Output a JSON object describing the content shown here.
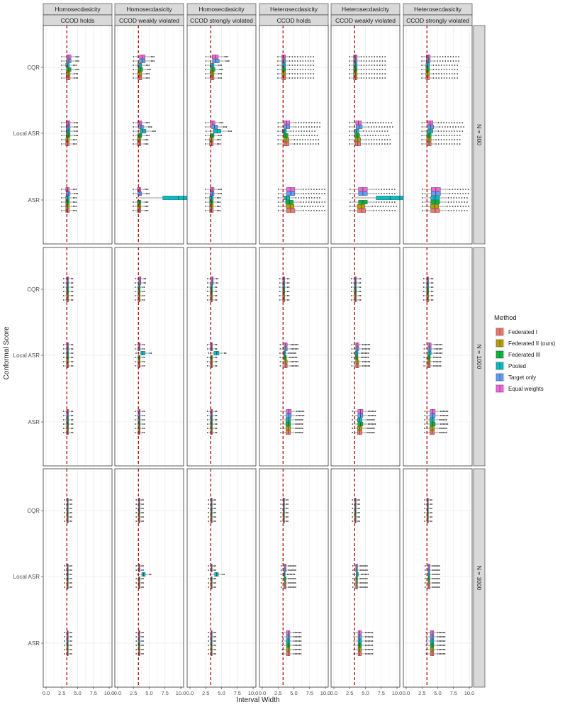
{
  "chart_data": {
    "type": "boxplot",
    "xlabel": "Interval Width",
    "ylabel": "Conformal Score",
    "xlim": [
      0,
      10
    ],
    "x_ticks": [
      "0.0",
      "2.5",
      "5.0",
      "7.5",
      "10.0"
    ],
    "reference_line": 3.29,
    "columns": [
      {
        "top": "Homosecdasicity",
        "bottom": "CCOD holds"
      },
      {
        "top": "Homosecdasicity",
        "bottom": "CCOD weakly violated"
      },
      {
        "top": "Homosecdasicity",
        "bottom": "CCOD strongly violated"
      },
      {
        "top": "Heterosecdasicity",
        "bottom": "CCOD holds"
      },
      {
        "top": "Heterosecdasicity",
        "bottom": "CCOD weakly violated"
      },
      {
        "top": "Heterosecdasicity",
        "bottom": "CCOD strongly violated"
      }
    ],
    "rows": [
      "N = 300",
      "N = 1000",
      "N = 3000"
    ],
    "categories": [
      "CQR",
      "Local ASR",
      "ASR"
    ],
    "legend": {
      "title": "Method",
      "entries": [
        {
          "name": "Federated I",
          "color": "#F8766D"
        },
        {
          "name": "Federated II (ours)",
          "color": "#B79F00"
        },
        {
          "name": "Federated III",
          "color": "#00BA38"
        },
        {
          "name": "Pooled",
          "color": "#00BFC4"
        },
        {
          "name": "Target only",
          "color": "#619CFF"
        },
        {
          "name": "Equal weights",
          "color": "#F564E3"
        }
      ]
    },
    "series_order_bottom_to_top": [
      "Federated I",
      "Federated II (ours)",
      "Federated III",
      "Pooled",
      "Target only",
      "Equal weights"
    ],
    "medians": {
      "N = 300": {
        "Homosecdasicity | CCOD holds": {
          "CQR": [
            3.5,
            3.5,
            3.6,
            3.4,
            3.6,
            3.6
          ],
          "Local ASR": [
            3.4,
            3.4,
            3.5,
            3.5,
            3.5,
            3.5
          ],
          "ASR": [
            3.4,
            3.4,
            3.4,
            3.4,
            3.5,
            3.4
          ]
        },
        "Homosecdasicity | CCOD weakly violated": {
          "CQR": [
            3.5,
            3.5,
            3.6,
            3.5,
            3.9,
            3.9
          ],
          "Local ASR": [
            3.4,
            3.4,
            3.5,
            4.0,
            3.7,
            3.5
          ],
          "ASR": [
            3.4,
            3.4,
            3.4,
            9.6,
            3.5,
            3.4
          ]
        },
        "Homosecdasicity | CCOD strongly violated": {
          "CQR": [
            3.5,
            3.5,
            3.6,
            3.5,
            4.1,
            4.0
          ],
          "Local ASR": [
            3.4,
            3.4,
            3.5,
            4.3,
            3.9,
            3.6
          ],
          "ASR": [
            3.4,
            3.4,
            3.4,
            3.4,
            3.5,
            3.5
          ]
        },
        "Heterosecdasicity | CCOD holds": {
          "CQR": [
            3.4,
            3.4,
            3.4,
            3.4,
            3.4,
            3.4
          ],
          "Local ASR": [
            3.8,
            3.8,
            3.7,
            3.5,
            3.9,
            3.9
          ],
          "ASR": [
            4.5,
            4.4,
            4.3,
            3.9,
            4.5,
            4.5
          ]
        },
        "Heterosecdasicity | CCOD weakly violated": {
          "CQR": [
            3.4,
            3.4,
            3.4,
            3.4,
            3.4,
            3.4
          ],
          "Local ASR": [
            3.8,
            3.8,
            3.7,
            3.6,
            4.0,
            3.9
          ],
          "ASR": [
            4.4,
            4.3,
            4.6,
            8.9,
            4.6,
            4.6
          ]
        },
        "Heterosecdasicity | CCOD strongly violated": {
          "CQR": [
            3.4,
            3.4,
            3.4,
            3.4,
            3.5,
            3.5
          ],
          "Local ASR": [
            3.6,
            3.6,
            3.6,
            3.8,
            3.9,
            3.8
          ],
          "ASR": [
            4.6,
            4.5,
            4.6,
            4.6,
            4.7,
            4.7
          ]
        }
      },
      "N = 1000": {
        "Homosecdasicity | CCOD holds": {
          "CQR": [
            3.4,
            3.4,
            3.4,
            3.4,
            3.4,
            3.4
          ],
          "Local ASR": [
            3.4,
            3.4,
            3.4,
            3.4,
            3.4,
            3.4
          ],
          "ASR": [
            3.4,
            3.4,
            3.4,
            3.4,
            3.4,
            3.4
          ]
        },
        "Homosecdasicity | CCOD weakly violated": {
          "CQR": [
            3.4,
            3.4,
            3.4,
            3.4,
            3.5,
            3.5
          ],
          "Local ASR": [
            3.4,
            3.4,
            3.4,
            4.0,
            3.4,
            3.4
          ],
          "ASR": [
            3.4,
            3.4,
            3.4,
            3.4,
            3.4,
            3.4
          ]
        },
        "Homosecdasicity | CCOD strongly violated": {
          "CQR": [
            3.4,
            3.4,
            3.4,
            3.4,
            3.5,
            3.5
          ],
          "Local ASR": [
            3.4,
            3.4,
            3.4,
            4.2,
            3.4,
            3.4
          ],
          "ASR": [
            3.4,
            3.4,
            3.4,
            3.4,
            3.4,
            3.4
          ]
        },
        "Heterosecdasicity | CCOD holds": {
          "CQR": [
            3.4,
            3.4,
            3.4,
            3.4,
            3.4,
            3.4
          ],
          "Local ASR": [
            3.7,
            3.7,
            3.6,
            3.5,
            3.7,
            3.7
          ],
          "ASR": [
            4.1,
            4.1,
            4.1,
            4.1,
            4.2,
            4.2
          ]
        },
        "Heterosecdasicity | CCOD weakly violated": {
          "CQR": [
            3.4,
            3.4,
            3.4,
            3.4,
            3.4,
            3.4
          ],
          "Local ASR": [
            3.7,
            3.7,
            3.6,
            3.6,
            3.7,
            3.7
          ],
          "ASR": [
            4.1,
            4.1,
            4.2,
            4.1,
            4.2,
            4.2
          ]
        },
        "Heterosecdasicity | CCOD strongly violated": {
          "CQR": [
            3.4,
            3.4,
            3.4,
            3.4,
            3.4,
            3.4
          ],
          "Local ASR": [
            3.6,
            3.6,
            3.6,
            3.7,
            3.7,
            3.7
          ],
          "ASR": [
            4.1,
            4.1,
            4.2,
            4.1,
            4.2,
            4.2
          ]
        }
      },
      "N = 3000": {
        "Homosecdasicity | CCOD holds": {
          "CQR": [
            3.4,
            3.4,
            3.4,
            3.4,
            3.4,
            3.4
          ],
          "Local ASR": [
            3.4,
            3.4,
            3.4,
            3.4,
            3.4,
            3.4
          ],
          "ASR": [
            3.4,
            3.4,
            3.4,
            3.4,
            3.4,
            3.4
          ]
        },
        "Homosecdasicity | CCOD weakly violated": {
          "CQR": [
            3.4,
            3.4,
            3.4,
            3.4,
            3.4,
            3.4
          ],
          "Local ASR": [
            3.4,
            3.4,
            3.4,
            4.1,
            3.4,
            3.4
          ],
          "ASR": [
            3.4,
            3.4,
            3.4,
            3.4,
            3.4,
            3.4
          ]
        },
        "Homosecdasicity | CCOD strongly violated": {
          "CQR": [
            3.4,
            3.4,
            3.4,
            3.4,
            3.4,
            3.4
          ],
          "Local ASR": [
            3.4,
            3.4,
            3.4,
            4.2,
            3.4,
            3.4
          ],
          "ASR": [
            3.4,
            3.4,
            3.4,
            3.4,
            3.4,
            3.4
          ]
        },
        "Heterosecdasicity | CCOD holds": {
          "CQR": [
            3.4,
            3.4,
            3.4,
            3.4,
            3.4,
            3.4
          ],
          "Local ASR": [
            3.6,
            3.6,
            3.6,
            3.5,
            3.6,
            3.6
          ],
          "ASR": [
            4.1,
            4.1,
            4.1,
            4.1,
            4.1,
            4.1
          ]
        },
        "Heterosecdasicity | CCOD weakly violated": {
          "CQR": [
            3.4,
            3.4,
            3.4,
            3.4,
            3.4,
            3.4
          ],
          "Local ASR": [
            3.6,
            3.6,
            3.6,
            3.7,
            3.6,
            3.6
          ],
          "ASR": [
            4.1,
            4.1,
            4.1,
            4.1,
            4.1,
            4.1
          ]
        },
        "Heterosecdasicity | CCOD strongly violated": {
          "CQR": [
            3.4,
            3.4,
            3.4,
            3.4,
            3.4,
            3.4
          ],
          "Local ASR": [
            3.6,
            3.6,
            3.6,
            3.6,
            3.6,
            3.6
          ],
          "ASR": [
            4.1,
            4.1,
            4.1,
            4.1,
            4.1,
            4.1
          ]
        }
      }
    }
  }
}
